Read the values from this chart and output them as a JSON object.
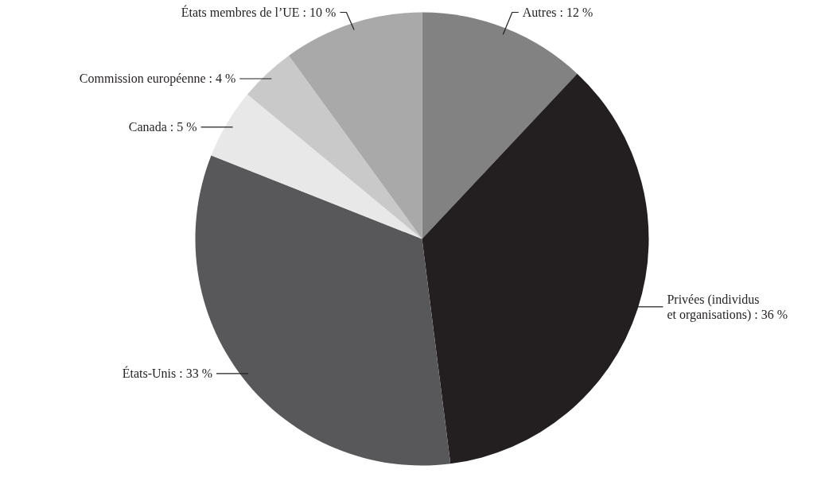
{
  "chart_data": {
    "type": "pie",
    "categories": [
      "Autres",
      "Privées (individus et organisations)",
      "États-Unis",
      "Canada",
      "Commission européenne",
      "États membres de l’UE"
    ],
    "values": [
      12,
      36,
      33,
      5,
      4,
      10
    ],
    "value_labels": [
      "12 %",
      "36 %",
      "33 %",
      "5 %",
      "4 %",
      "10 %"
    ],
    "colors": [
      "#828282",
      "#231f20",
      "#58585a",
      "#e8e8e8",
      "#c9c9c9",
      "#a9a9a9"
    ],
    "legend": false
  }
}
